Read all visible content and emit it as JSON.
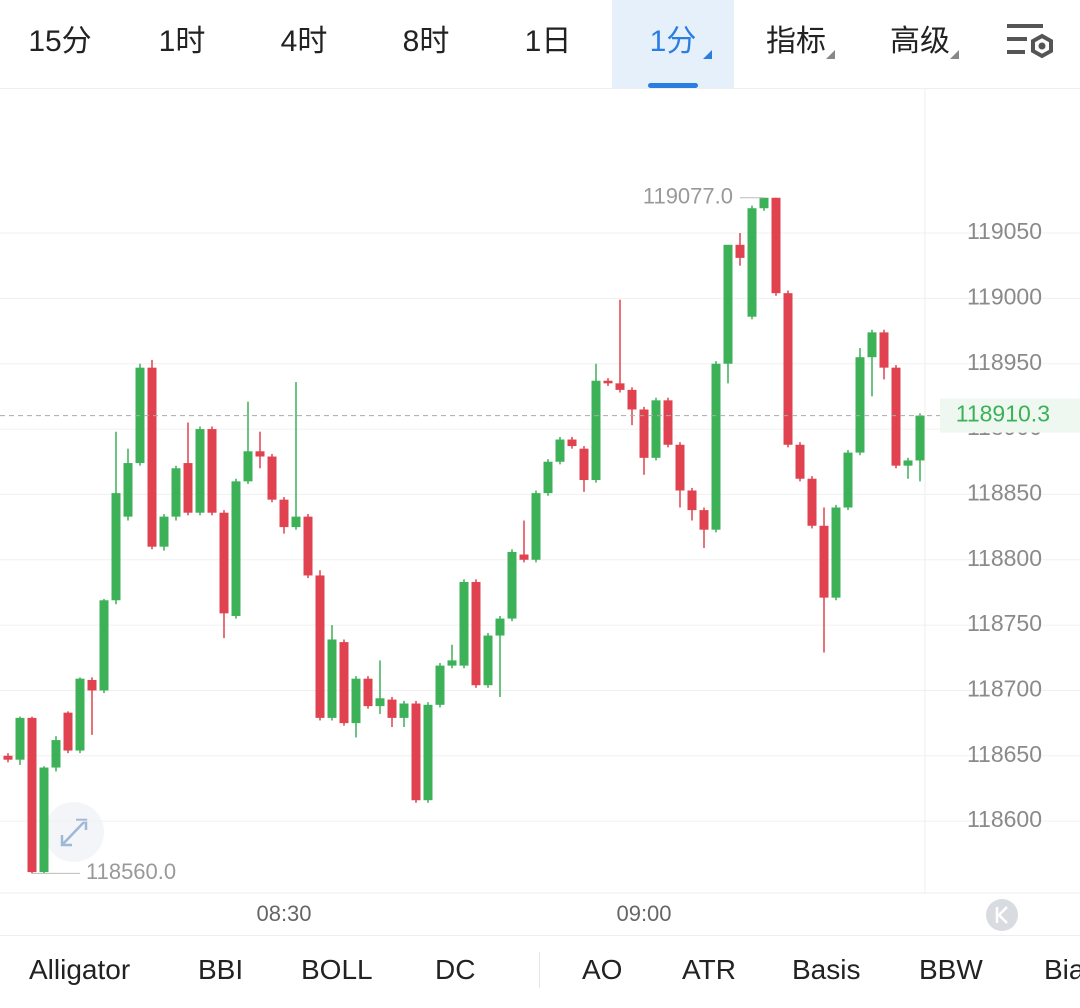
{
  "toolbar": {
    "tabs": [
      "15分",
      "1时",
      "4时",
      "8时",
      "1日",
      "1分",
      "指标",
      "高级"
    ],
    "active": 5
  },
  "chart_data": {
    "type": "candlestick",
    "categories": [
      null,
      null,
      null,
      null,
      null,
      null,
      null,
      null,
      null,
      null,
      null,
      null,
      null,
      null,
      null,
      null,
      null,
      null,
      null,
      null,
      null,
      null,
      null,
      "08:30",
      null,
      null,
      null,
      null,
      null,
      null,
      null,
      null,
      null,
      null,
      null,
      null,
      null,
      null,
      null,
      null,
      null,
      null,
      null,
      null,
      null,
      null,
      null,
      null,
      null,
      null,
      null,
      null,
      null,
      "09:00",
      null,
      null,
      null,
      null,
      null,
      null,
      null,
      null,
      null,
      null,
      null,
      null,
      null,
      null,
      null,
      null,
      null,
      null,
      null,
      null,
      null,
      null,
      null
    ],
    "open": [
      118650,
      118647,
      118679,
      118561,
      118641,
      118683,
      118654,
      118708,
      118700,
      118769,
      118833,
      118874,
      118947,
      118810,
      118833,
      118874,
      118836,
      118900,
      118836,
      118757,
      118860,
      118883,
      118879,
      118846,
      118825,
      118833,
      118788,
      118679,
      118737,
      118675,
      118709,
      118688,
      118693,
      118679,
      118690,
      118616,
      118689,
      118719,
      118719,
      118783,
      118704,
      118742,
      118755,
      118804,
      118800,
      118851,
      118875,
      118892,
      118885,
      118861,
      118937,
      118935,
      118930,
      118915,
      118878,
      118922,
      118888,
      118853,
      118838,
      118823,
      118950,
      119041,
      118986,
      119069,
      119077,
      119004,
      118888,
      118862,
      118826,
      118771,
      118840,
      118882,
      118955,
      118974,
      118947,
      118872,
      118876
    ],
    "high": [
      118652,
      118680,
      118680,
      118642,
      118665,
      118684,
      118710,
      118710,
      118770,
      118898,
      118885,
      118950,
      118953,
      118835,
      118872,
      118905,
      118902,
      118902,
      118838,
      118862,
      118921,
      118898,
      118881,
      118848,
      118936,
      118835,
      118792,
      118750,
      118739,
      118711,
      118711,
      118723,
      118695,
      118692,
      118692,
      118691,
      118721,
      118735,
      118785,
      118785,
      118744,
      118757,
      118808,
      118830,
      118853,
      118877,
      118894,
      118894,
      118887,
      118950,
      118939,
      118999,
      118932,
      118917,
      118924,
      118924,
      118890,
      118855,
      118840,
      118952,
      119041,
      119050,
      119071,
      119077,
      119077,
      119006,
      118890,
      118864,
      118840,
      118842,
      118884,
      118962,
      118976,
      118976,
      118949,
      118878,
      118912
    ],
    "low": [
      118645,
      118643,
      118560,
      118560,
      118638,
      118652,
      118652,
      118666,
      118698,
      118766,
      118830,
      118872,
      118808,
      118807,
      118830,
      118834,
      118834,
      118834,
      118740,
      118755,
      118858,
      118870,
      118844,
      118820,
      118823,
      118786,
      118677,
      118677,
      118673,
      118664,
      118686,
      118682,
      118672,
      118672,
      118614,
      118614,
      118687,
      118717,
      118717,
      118702,
      118702,
      118695,
      118753,
      118798,
      118798,
      118849,
      118873,
      118885,
      118852,
      118859,
      118933,
      118928,
      118903,
      118865,
      118876,
      118886,
      118840,
      118830,
      118809,
      118821,
      118935,
      119025,
      118984,
      119067,
      119002,
      118886,
      118860,
      118824,
      118729,
      118769,
      118838,
      118880,
      118925,
      118938,
      118870,
      118862,
      118860
    ],
    "close": [
      118647,
      118679,
      118561,
      118641,
      118662,
      118654,
      118709,
      118700,
      118769,
      118851,
      118874,
      118947,
      118810,
      118833,
      118870,
      118836,
      118900,
      118836,
      118759,
      118860,
      118883,
      118879,
      118846,
      118825,
      118833,
      118788,
      118679,
      118739,
      118675,
      118709,
      118688,
      118694,
      118679,
      118690,
      118616,
      118689,
      118719,
      118723,
      118783,
      118704,
      118742,
      118755,
      118806,
      118800,
      118851,
      118875,
      118892,
      118887,
      118861,
      118937,
      118935,
      118930,
      118915,
      118878,
      118922,
      118888,
      118853,
      118838,
      118823,
      118950,
      119041,
      119031,
      119069,
      119077,
      119004,
      118888,
      118862,
      118826,
      118771,
      118840,
      118882,
      118955,
      118974,
      118947,
      118872,
      118876,
      118910.3
    ],
    "up_color": "#3cb158",
    "down_color": "#e0434f",
    "ylim": [
      118545,
      119161
    ],
    "yticks": [
      118600,
      118650,
      118700,
      118750,
      118800,
      118850,
      118900,
      118950,
      119000,
      119050
    ],
    "grid": true,
    "max_label": {
      "value": 119077,
      "label": "119077.0"
    },
    "min_label": {
      "value": 118560,
      "label": "118560.0"
    },
    "last_price": 118910.3
  },
  "indicators": [
    "Alligator",
    "BBI",
    "BOLL",
    "DC",
    "AO",
    "ATR",
    "Basis",
    "BBW",
    "Bia"
  ]
}
